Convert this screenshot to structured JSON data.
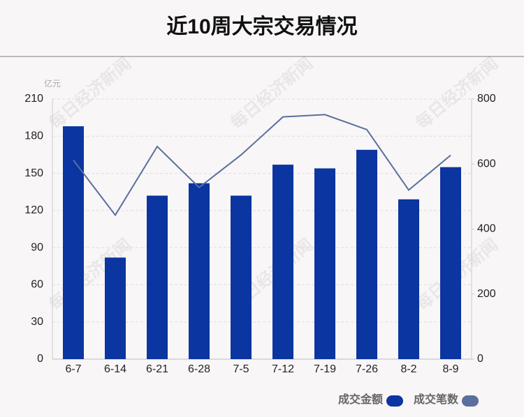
{
  "chart_data": {
    "type": "bar",
    "title": "近10周大宗交易情况",
    "y_unit": "亿元",
    "watermark": "每日经济新闻",
    "categories": [
      "6-7",
      "6-14",
      "6-21",
      "6-28",
      "7-5",
      "7-12",
      "7-19",
      "7-26",
      "8-2",
      "8-9"
    ],
    "series": [
      {
        "name": "成交金额",
        "type": "bar",
        "color": "#0b35a0",
        "values": [
          188,
          82,
          132,
          142,
          132,
          157,
          154,
          169,
          129,
          155
        ]
      },
      {
        "name": "成交笔数",
        "type": "line",
        "axis": "y2",
        "color": "#5a6f9e",
        "values": [
          612,
          443,
          654,
          528,
          628,
          745,
          752,
          706,
          520,
          627
        ]
      }
    ],
    "ylim": [
      0,
      210
    ],
    "yticks": [
      0,
      30,
      60,
      90,
      120,
      150,
      180,
      210
    ],
    "y2lim": [
      0,
      800
    ],
    "y2ticks": [
      0,
      200,
      400,
      600,
      800
    ],
    "grid": true,
    "legend": "bottom-right"
  }
}
